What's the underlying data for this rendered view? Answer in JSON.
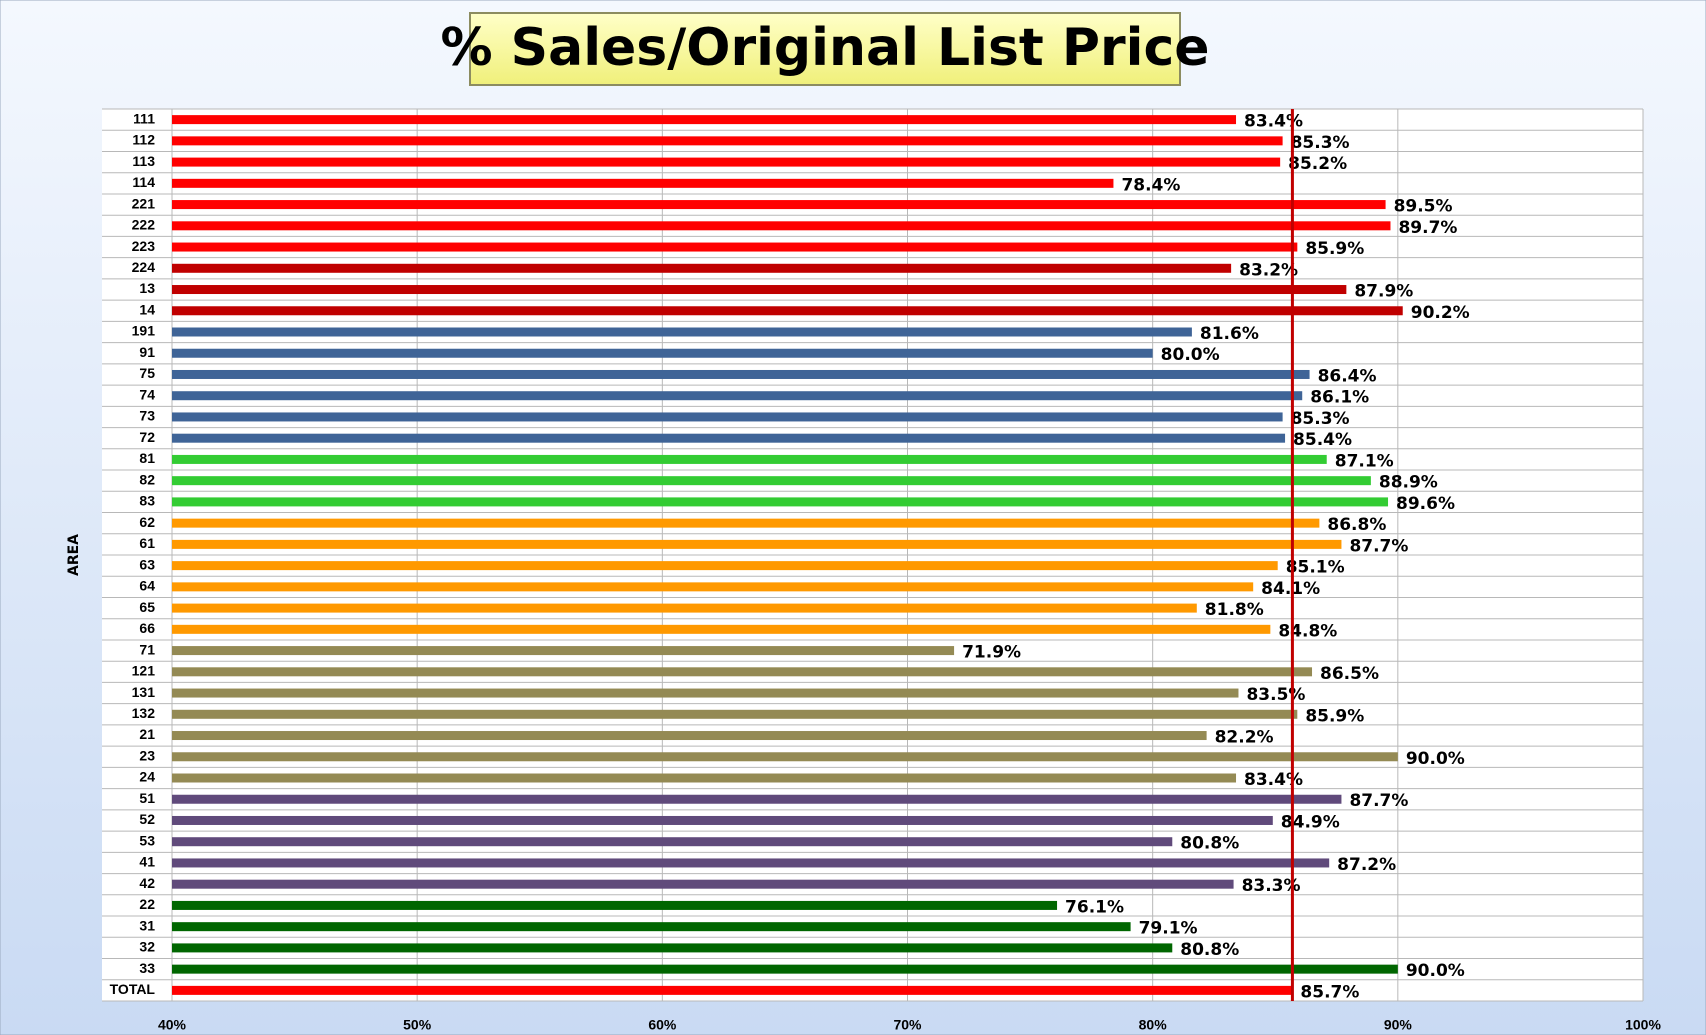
{
  "chart_data": {
    "type": "barh",
    "title": "% Sales/Original List Price",
    "y_label": "AREA",
    "categories": [
      "111",
      "112",
      "113",
      "114",
      "221",
      "222",
      "223",
      "224",
      "13",
      "14",
      "191",
      "91",
      "75",
      "74",
      "73",
      "72",
      "81",
      "82",
      "83",
      "62",
      "61",
      "63",
      "64",
      "65",
      "66",
      "71",
      "121",
      "131",
      "132",
      "21",
      "23",
      "24",
      "51",
      "52",
      "53",
      "41",
      "42",
      "22",
      "31",
      "32",
      "33",
      "TOTAL"
    ],
    "values": [
      83.4,
      85.3,
      85.2,
      78.4,
      89.5,
      89.7,
      85.9,
      83.2,
      87.9,
      90.2,
      81.6,
      80.0,
      86.4,
      86.1,
      85.3,
      85.4,
      87.1,
      88.9,
      89.6,
      86.8,
      87.7,
      85.1,
      84.1,
      81.8,
      84.8,
      71.9,
      86.5,
      83.5,
      85.9,
      82.2,
      90.0,
      83.4,
      87.7,
      84.9,
      80.8,
      87.2,
      83.3,
      76.1,
      79.1,
      80.8,
      90.0,
      85.7
    ],
    "value_labels": [
      "83.4%",
      "85.3%",
      "85.2%",
      "78.4%",
      "89.5%",
      "89.7%",
      "85.9%",
      "83.2%",
      "87.9%",
      "90.2%",
      "81.6%",
      "80.0%",
      "86.4%",
      "86.1%",
      "85.3%",
      "85.4%",
      "87.1%",
      "88.9%",
      "89.6%",
      "86.8%",
      "87.7%",
      "85.1%",
      "84.1%",
      "81.8%",
      "84.8%",
      "71.9%",
      "86.5%",
      "83.5%",
      "85.9%",
      "82.2%",
      "90.0%",
      "83.4%",
      "87.7%",
      "84.9%",
      "80.8%",
      "87.2%",
      "83.3%",
      "76.1%",
      "79.1%",
      "80.8%",
      "90.0%",
      "85.7%"
    ],
    "colors": [
      "#ff0000",
      "#ff0000",
      "#ff0000",
      "#ff0000",
      "#ff0000",
      "#ff0000",
      "#ff0000",
      "#c00000",
      "#c00000",
      "#c00000",
      "#3f6497",
      "#3f6497",
      "#3f6497",
      "#3f6497",
      "#3f6497",
      "#3f6497",
      "#33cc33",
      "#33cc33",
      "#33cc33",
      "#ff9900",
      "#ff9900",
      "#ff9900",
      "#ff9900",
      "#ff9900",
      "#ff9900",
      "#948a54",
      "#948a54",
      "#948a54",
      "#948a54",
      "#948a54",
      "#948a54",
      "#948a54",
      "#604a7b",
      "#604a7b",
      "#604a7b",
      "#604a7b",
      "#604a7b",
      "#006600",
      "#006600",
      "#006600",
      "#006600",
      "#ff0000"
    ],
    "xlim": [
      40,
      100
    ],
    "xticks": [
      {
        "value": 40,
        "label": "40%"
      },
      {
        "value": 50,
        "label": "50%"
      },
      {
        "value": 60,
        "label": "60%"
      },
      {
        "value": 70,
        "label": "70%"
      },
      {
        "value": 80,
        "label": "80%"
      },
      {
        "value": 90,
        "label": "90%"
      },
      {
        "value": 100,
        "label": "100%"
      }
    ],
    "grid": true,
    "reference_line": 85.7,
    "reference_color": "#c00000"
  }
}
